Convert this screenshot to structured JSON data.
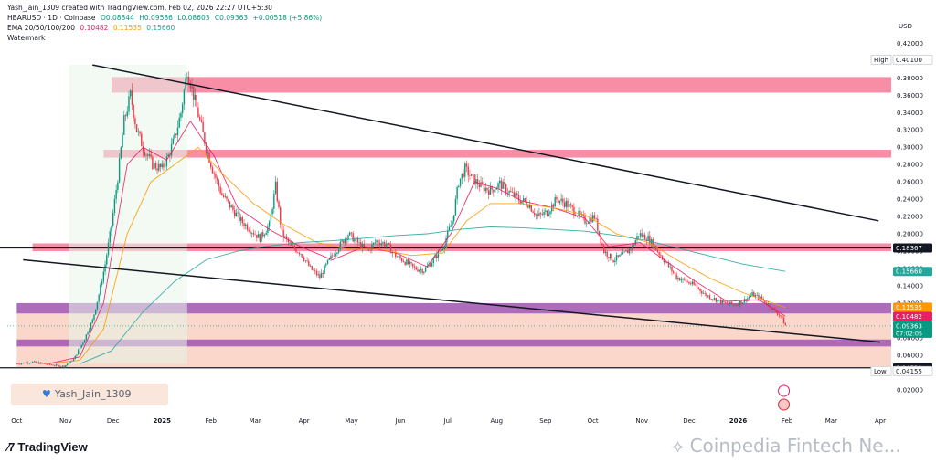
{
  "header": {
    "line1": "Yash_Jain_1309 created with TradingView.com, Feb 02, 2026 22:27 UTC+5:30",
    "symbol": "HBARUSD · 1D · Coinbase",
    "open": "O0.08844",
    "high": "H0.09586",
    "low": "L0.08603",
    "close": "C0.09363",
    "change": "+0.00518 (+5.86%)",
    "ema_label": "EMA 20/50/100/200",
    "ema20": "0.10482",
    "ema50": "0.11535",
    "ema200": "0.15660",
    "watermark_label": "Watermark"
  },
  "author_tag": "Yash_Jain_1309",
  "footer_brand": "TradingView",
  "watermark_text": "Coinpedia Fintech Ne...",
  "colors": {
    "candle_up": "#089981",
    "candle_down": "#f23645",
    "ema20": "#e91e63",
    "ema50": "#ff9800",
    "ema200": "#26a69a",
    "resistance_zone": "#f7819c",
    "support_zone": "#a55cb5",
    "lower_band": "#f9c8b8"
  },
  "chart_data": {
    "type": "candlestick",
    "currency": "USD",
    "y_ticks": [
      "0.42000",
      "0.40000",
      "0.38000",
      "0.36000",
      "0.34000",
      "0.32000",
      "0.30000",
      "0.28000",
      "0.26000",
      "0.24000",
      "0.22000",
      "0.20000",
      "0.18000",
      "0.16000",
      "0.14000",
      "0.12000",
      "0.10000",
      "0.08000",
      "0.06000",
      "0.04000",
      "0.02000"
    ],
    "y_tick_values": [
      0.42,
      0.4,
      0.38,
      0.36,
      0.34,
      0.32,
      0.3,
      0.28,
      0.26,
      0.24,
      0.22,
      0.2,
      0.18,
      0.16,
      0.14,
      0.12,
      0.1,
      0.08,
      0.06,
      0.04,
      0.02
    ],
    "ylim": [
      0.005,
      0.432
    ],
    "x_ticks": [
      "Oct",
      "Nov",
      "Dec",
      "2025",
      "Feb",
      "Mar",
      "Apr",
      "May",
      "Jun",
      "Jul",
      "Aug",
      "Sep",
      "Oct",
      "Nov",
      "Dec",
      "2026",
      "Feb",
      "Mar",
      "Apr"
    ],
    "x_tick_index": [
      0,
      31,
      61,
      92,
      123,
      151,
      182,
      212,
      243,
      273,
      304,
      335,
      365,
      396,
      426,
      457,
      488,
      516,
      547
    ],
    "xlim": [
      -6,
      554
    ],
    "last_index": 487,
    "price_labels": [
      {
        "label": "High",
        "value": "0.40100",
        "y": 0.401,
        "style": "high"
      },
      {
        "label": "",
        "value": "0.18367",
        "y": 0.18367,
        "style": "dark"
      },
      {
        "label": "",
        "value": "0.15660",
        "y": 0.1566,
        "style": "ema200"
      },
      {
        "label": "",
        "value": "0.11535",
        "y": 0.11535,
        "style": "ema50"
      },
      {
        "label": "",
        "value": "0.10482",
        "y": 0.10482,
        "style": "ema20"
      },
      {
        "label": "",
        "value": "0.09363",
        "sub": "07:02:05",
        "y": 0.09363,
        "style": "last"
      },
      {
        "label": "",
        "value": "0.04531",
        "y": 0.04531,
        "style": "dark"
      },
      {
        "label": "Low",
        "value": "0.04155",
        "y": 0.04155,
        "style": "low"
      }
    ],
    "zones": [
      {
        "y1": 0.363,
        "y2": 0.381,
        "color": "resistance_zone",
        "x_start": 60
      },
      {
        "y1": 0.288,
        "y2": 0.297,
        "color": "resistance_zone",
        "x_start": 55
      },
      {
        "y1": 0.18,
        "y2": 0.189,
        "color": "resistance_zone",
        "x_start": 10
      },
      {
        "y1": 0.108,
        "y2": 0.12,
        "color": "support_zone",
        "x_start": 0
      },
      {
        "y1": 0.07,
        "y2": 0.078,
        "color": "support_zone",
        "x_start": 0
      },
      {
        "y1": 0.046,
        "y2": 0.108,
        "color": "lower_band",
        "x_start": 0
      }
    ],
    "trendlines": [
      {
        "x1": 48,
        "y1": 0.395,
        "x2": 546,
        "y2": 0.215
      },
      {
        "x1": 4,
        "y1": 0.17,
        "x2": 547,
        "y2": 0.075
      }
    ],
    "hlines": [
      {
        "y": 0.18367,
        "color": "#131722"
      },
      {
        "y": 0.04531,
        "color": "#131722"
      }
    ],
    "series": [
      {
        "name": "HBARUSD",
        "points": [
          [
            0,
            0.05
          ],
          [
            10,
            0.052
          ],
          [
            20,
            0.049
          ],
          [
            30,
            0.047
          ],
          [
            36,
            0.055
          ],
          [
            42,
            0.075
          ],
          [
            48,
            0.1
          ],
          [
            52,
            0.13
          ],
          [
            56,
            0.165
          ],
          [
            60,
            0.21
          ],
          [
            64,
            0.265
          ],
          [
            68,
            0.33
          ],
          [
            72,
            0.36
          ],
          [
            76,
            0.32
          ],
          [
            80,
            0.3
          ],
          [
            86,
            0.28
          ],
          [
            92,
            0.275
          ],
          [
            96,
            0.29
          ],
          [
            100,
            0.31
          ],
          [
            104,
            0.34
          ],
          [
            108,
            0.39
          ],
          [
            112,
            0.36
          ],
          [
            116,
            0.33
          ],
          [
            120,
            0.3
          ],
          [
            124,
            0.275
          ],
          [
            130,
            0.245
          ],
          [
            136,
            0.23
          ],
          [
            142,
            0.215
          ],
          [
            148,
            0.205
          ],
          [
            154,
            0.195
          ],
          [
            160,
            0.21
          ],
          [
            164,
            0.255
          ],
          [
            168,
            0.2
          ],
          [
            174,
            0.185
          ],
          [
            180,
            0.178
          ],
          [
            186,
            0.16
          ],
          [
            192,
            0.15
          ],
          [
            198,
            0.17
          ],
          [
            204,
            0.185
          ],
          [
            210,
            0.2
          ],
          [
            216,
            0.19
          ],
          [
            222,
            0.18
          ],
          [
            228,
            0.192
          ],
          [
            234,
            0.188
          ],
          [
            240,
            0.175
          ],
          [
            246,
            0.168
          ],
          [
            252,
            0.16
          ],
          [
            258,
            0.158
          ],
          [
            264,
            0.17
          ],
          [
            270,
            0.185
          ],
          [
            276,
            0.215
          ],
          [
            280,
            0.26
          ],
          [
            284,
            0.275
          ],
          [
            288,
            0.265
          ],
          [
            294,
            0.255
          ],
          [
            300,
            0.25
          ],
          [
            306,
            0.258
          ],
          [
            312,
            0.248
          ],
          [
            318,
            0.24
          ],
          [
            324,
            0.235
          ],
          [
            330,
            0.22
          ],
          [
            336,
            0.225
          ],
          [
            342,
            0.24
          ],
          [
            348,
            0.235
          ],
          [
            354,
            0.225
          ],
          [
            360,
            0.215
          ],
          [
            366,
            0.22
          ],
          [
            372,
            0.18
          ],
          [
            378,
            0.17
          ],
          [
            384,
            0.175
          ],
          [
            390,
            0.185
          ],
          [
            394,
            0.2
          ],
          [
            400,
            0.195
          ],
          [
            406,
            0.18
          ],
          [
            412,
            0.165
          ],
          [
            418,
            0.15
          ],
          [
            424,
            0.145
          ],
          [
            430,
            0.14
          ],
          [
            436,
            0.13
          ],
          [
            442,
            0.125
          ],
          [
            448,
            0.12
          ],
          [
            454,
            0.118
          ],
          [
            460,
            0.122
          ],
          [
            466,
            0.13
          ],
          [
            472,
            0.125
          ],
          [
            478,
            0.115
          ],
          [
            484,
            0.105
          ],
          [
            487,
            0.094
          ]
        ]
      },
      {
        "name": "EMA 20",
        "points": [
          [
            20,
            0.05
          ],
          [
            40,
            0.058
          ],
          [
            55,
            0.12
          ],
          [
            70,
            0.28
          ],
          [
            80,
            0.3
          ],
          [
            95,
            0.285
          ],
          [
            110,
            0.33
          ],
          [
            125,
            0.29
          ],
          [
            140,
            0.23
          ],
          [
            160,
            0.205
          ],
          [
            180,
            0.185
          ],
          [
            200,
            0.17
          ],
          [
            220,
            0.185
          ],
          [
            240,
            0.178
          ],
          [
            260,
            0.162
          ],
          [
            275,
            0.2
          ],
          [
            290,
            0.26
          ],
          [
            305,
            0.252
          ],
          [
            320,
            0.238
          ],
          [
            340,
            0.23
          ],
          [
            360,
            0.218
          ],
          [
            375,
            0.185
          ],
          [
            395,
            0.19
          ],
          [
            410,
            0.17
          ],
          [
            430,
            0.145
          ],
          [
            450,
            0.122
          ],
          [
            470,
            0.124
          ],
          [
            487,
            0.105
          ]
        ]
      },
      {
        "name": "EMA 50",
        "points": [
          [
            20,
            0.05
          ],
          [
            40,
            0.054
          ],
          [
            55,
            0.09
          ],
          [
            70,
            0.2
          ],
          [
            85,
            0.26
          ],
          [
            100,
            0.28
          ],
          [
            115,
            0.3
          ],
          [
            130,
            0.27
          ],
          [
            150,
            0.235
          ],
          [
            170,
            0.21
          ],
          [
            190,
            0.19
          ],
          [
            210,
            0.182
          ],
          [
            230,
            0.182
          ],
          [
            250,
            0.175
          ],
          [
            270,
            0.178
          ],
          [
            285,
            0.215
          ],
          [
            300,
            0.235
          ],
          [
            320,
            0.235
          ],
          [
            340,
            0.23
          ],
          [
            360,
            0.222
          ],
          [
            380,
            0.2
          ],
          [
            400,
            0.19
          ],
          [
            420,
            0.168
          ],
          [
            440,
            0.148
          ],
          [
            460,
            0.132
          ],
          [
            487,
            0.115
          ]
        ]
      },
      {
        "name": "EMA 200",
        "points": [
          [
            40,
            0.05
          ],
          [
            60,
            0.065
          ],
          [
            80,
            0.11
          ],
          [
            100,
            0.145
          ],
          [
            120,
            0.17
          ],
          [
            140,
            0.18
          ],
          [
            160,
            0.186
          ],
          [
            180,
            0.19
          ],
          [
            200,
            0.192
          ],
          [
            220,
            0.195
          ],
          [
            240,
            0.198
          ],
          [
            260,
            0.2
          ],
          [
            280,
            0.205
          ],
          [
            300,
            0.208
          ],
          [
            320,
            0.207
          ],
          [
            340,
            0.205
          ],
          [
            360,
            0.203
          ],
          [
            380,
            0.198
          ],
          [
            400,
            0.192
          ],
          [
            420,
            0.183
          ],
          [
            440,
            0.174
          ],
          [
            460,
            0.165
          ],
          [
            487,
            0.1566
          ]
        ]
      }
    ]
  }
}
